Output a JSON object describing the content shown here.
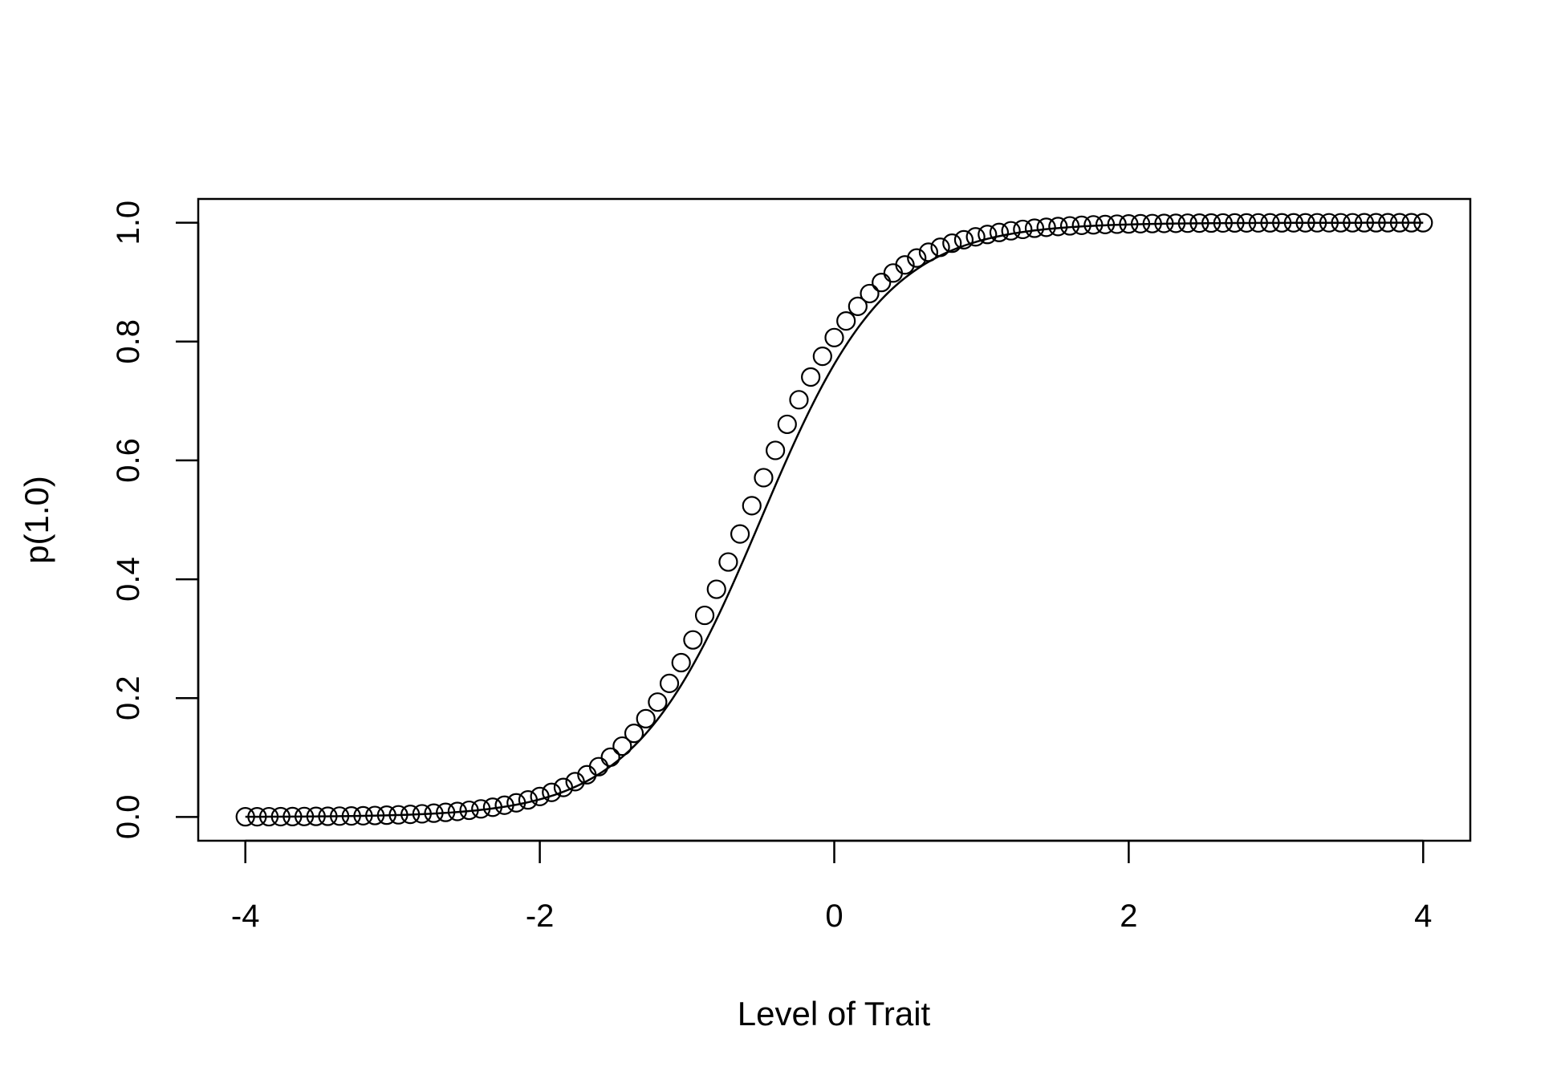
{
  "chart_data": {
    "type": "scatter",
    "title": "",
    "xlabel": "Level of Trait",
    "ylabel": "p(1.0)",
    "xlim": [
      -4.32,
      4.32
    ],
    "ylim": [
      -0.04,
      1.04
    ],
    "x_ticks": [
      -4,
      -2,
      0,
      2,
      4
    ],
    "x_tick_labels": [
      "-4",
      "-2",
      "0",
      "2",
      "4"
    ],
    "y_ticks": [
      0.0,
      0.2,
      0.4,
      0.6,
      0.8,
      1.0
    ],
    "y_tick_labels": [
      "0.0",
      "0.2",
      "0.4",
      "0.6",
      "0.8",
      "1.0"
    ],
    "grid": false,
    "series": [
      {
        "marker": "open-circle",
        "x_range": [
          -4,
          4
        ],
        "point_count": 101,
        "curve": "logistic",
        "parameters": {
          "location": -0.6,
          "scale": 0.42
        }
      },
      {
        "marker": "line",
        "x_range": [
          -4,
          4
        ],
        "curve": "logistic",
        "parameters": {
          "location": -0.5,
          "scale": 0.43
        }
      }
    ],
    "colors": {
      "stroke": "#000000",
      "background": "#ffffff"
    }
  }
}
